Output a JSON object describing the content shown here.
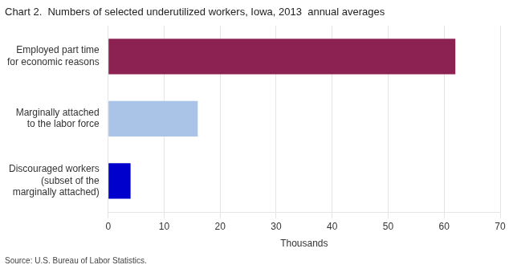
{
  "chart_data": {
    "type": "bar",
    "orientation": "horizontal",
    "title": "Chart 2.  Numbers of selected underutilized workers, Iowa, 2013  annual averages",
    "annotations": [
      "Source: U.S. Bureau of Labor Statistics."
    ],
    "categories": [
      "Discouraged workers\n(subset of the\nmarginally attached)",
      "Marginally attached\nto the labor force",
      "Employed part time\nfor economic reasons"
    ],
    "values": [
      4,
      16,
      62
    ],
    "colors": [
      "#0000cc",
      "#aac4e8",
      "#8b2252"
    ],
    "xlabel": "Thousands",
    "xlim": [
      0,
      70
    ],
    "xticks": [
      0,
      10,
      20,
      30,
      40,
      50,
      60,
      70
    ],
    "grid": true
  }
}
